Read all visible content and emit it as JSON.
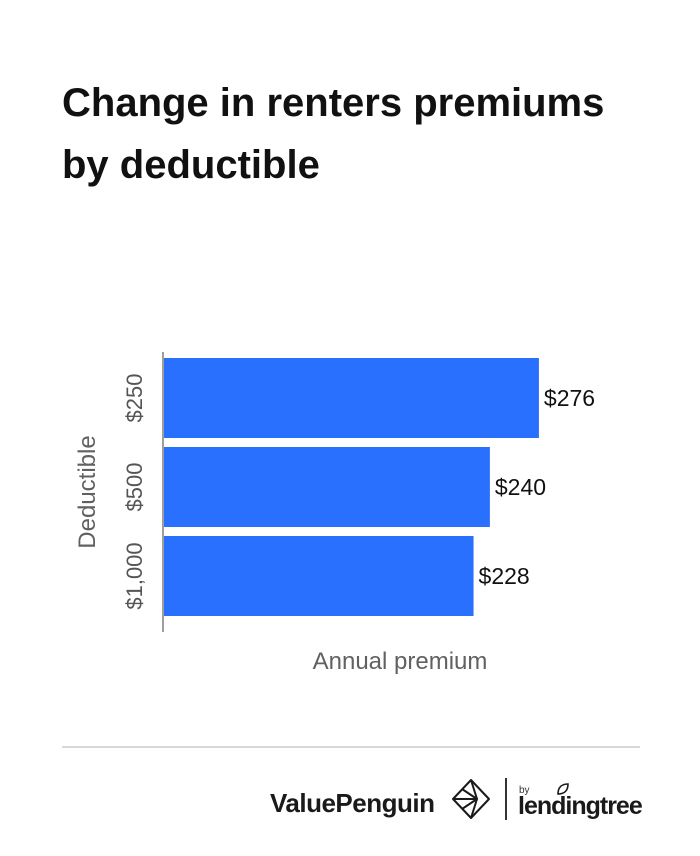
{
  "title_lines": [
    "Change in renters premiums",
    "by deductible"
  ],
  "chart_data": {
    "type": "bar",
    "orientation": "horizontal",
    "categories": [
      "$250",
      "$500",
      "$1,000"
    ],
    "values": [
      276,
      240,
      228
    ],
    "data_labels": [
      "$276",
      "$240",
      "$228"
    ],
    "xlabel": "Annual premium",
    "ylabel": "Deductible",
    "xlim": [
      0,
      290
    ],
    "bar_color": "#2970ff",
    "axis_color": "#9e9e9e",
    "grid": false,
    "legend": "none"
  },
  "footer": {
    "brand": "ValuePenguin",
    "by": "by",
    "partner": "lendingtree"
  }
}
